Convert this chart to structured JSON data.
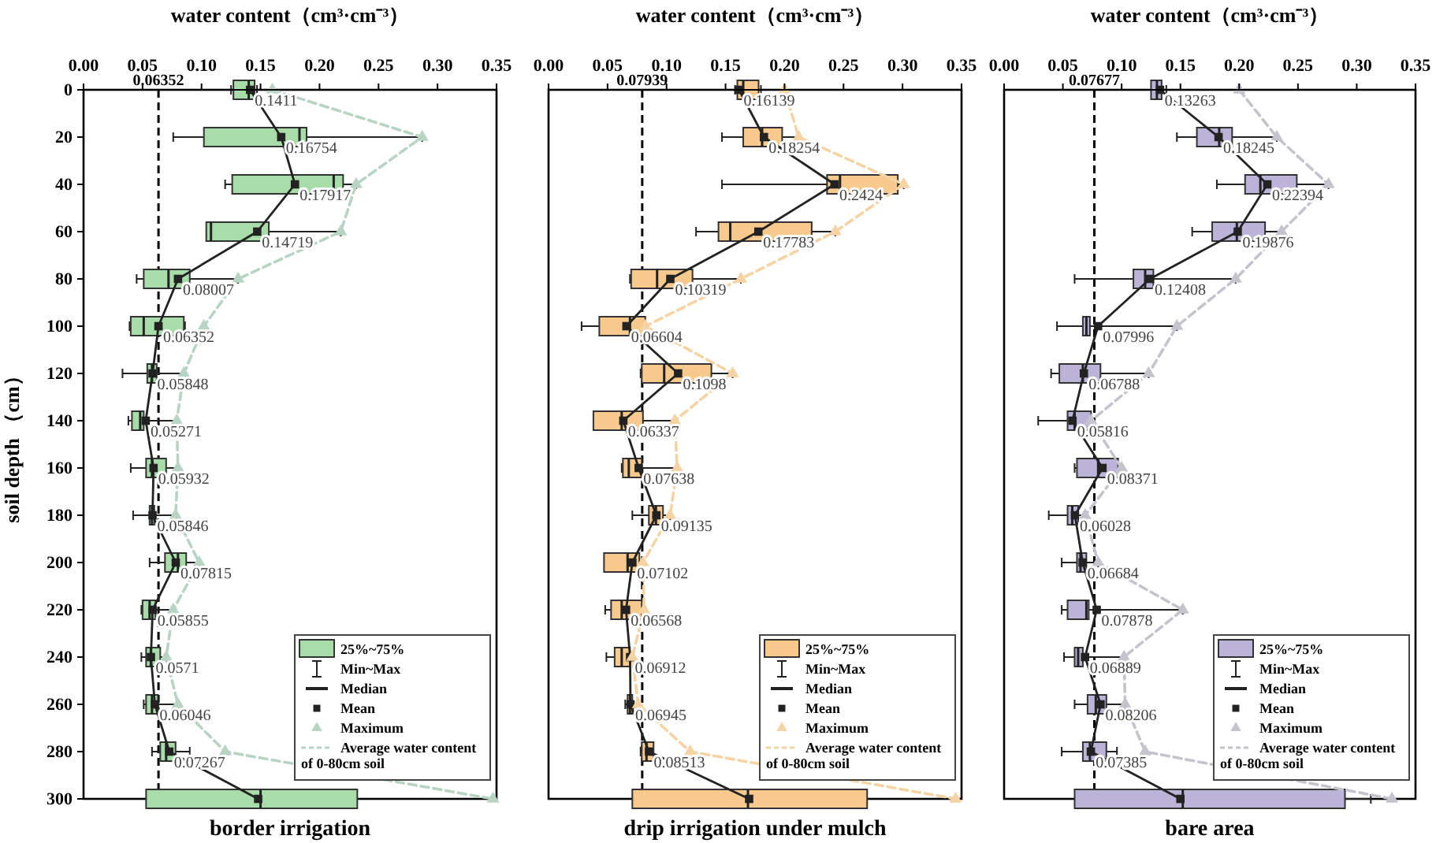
{
  "chart_data": [
    {
      "type": "box",
      "title": "border irrigation",
      "xlabel": "water content（cm³·cm⁻³）",
      "ylabel": "soil depth （cm）",
      "orientation": "horizontal",
      "legend": "bottom right",
      "categories": [
        "0",
        "20",
        "40",
        "60",
        "80",
        "100",
        "120",
        "140",
        "160",
        "180",
        "200",
        "220",
        "240",
        "260",
        "280",
        "300"
      ],
      "xlim": [
        0,
        0.35
      ],
      "xticks": [
        {
          "value": 0,
          "label": "0.00"
        },
        {
          "value": 0.05,
          "label": "0.05"
        },
        {
          "value": 0.1,
          "label": "0.10"
        },
        {
          "value": 0.15,
          "label": "0.15"
        },
        {
          "value": 0.2,
          "label": "0.20"
        },
        {
          "value": 0.25,
          "label": "0.25"
        },
        {
          "value": 0.3,
          "label": "0.30"
        },
        {
          "value": 0.35,
          "label": "0.35"
        }
      ],
      "ref_lines": [
        {
          "axis": "x",
          "value": 0.06352,
          "label": "0.06352",
          "color": "#000000",
          "line_style": "dashed"
        }
      ],
      "annotations": [
        "Min~Max",
        "Median",
        "Average water content of 0-80cm soil"
      ],
      "series": [
        {
          "type": "box",
          "name": "25%~75%",
          "color": "#a8dca8",
          "boxes": [
            {
              "low": 0.125,
              "q1": 0.127,
              "median": 0.14,
              "q3": 0.145,
              "high": 0.147
            },
            {
              "low": 0.076,
              "q1": 0.102,
              "median": 0.183,
              "q3": 0.189,
              "high": 0.287
            },
            {
              "low": 0.12,
              "q1": 0.126,
              "median": 0.212,
              "q3": 0.22,
              "high": 0.231
            },
            {
              "low": 0.104,
              "q1": 0.104,
              "median": 0.108,
              "q3": 0.157,
              "high": 0.218
            },
            {
              "low": 0.045,
              "q1": 0.051,
              "median": 0.072,
              "q3": 0.09,
              "high": 0.131
            },
            {
              "low": 0.039,
              "q1": 0.04,
              "median": 0.051,
              "q3": 0.085,
              "high": 0.086
            },
            {
              "low": 0.033,
              "q1": 0.054,
              "median": 0.058,
              "q3": 0.062,
              "high": 0.085
            },
            {
              "low": 0.038,
              "q1": 0.041,
              "median": 0.048,
              "q3": 0.051,
              "high": 0.079
            },
            {
              "low": 0.04,
              "q1": 0.053,
              "median": 0.058,
              "q3": 0.07,
              "high": 0.08
            },
            {
              "low": 0.042,
              "q1": 0.056,
              "median": 0.058,
              "q3": 0.06,
              "high": 0.078
            },
            {
              "low": 0.056,
              "q1": 0.069,
              "median": 0.08,
              "q3": 0.087,
              "high": 0.098
            },
            {
              "low": 0.049,
              "q1": 0.05,
              "median": 0.056,
              "q3": 0.061,
              "high": 0.076
            },
            {
              "low": 0.049,
              "q1": 0.053,
              "median": 0.057,
              "q3": 0.065,
              "high": 0.07
            },
            {
              "low": 0.051,
              "q1": 0.053,
              "median": 0.058,
              "q3": 0.063,
              "high": 0.08
            },
            {
              "low": 0.058,
              "q1": 0.065,
              "median": 0.07,
              "q3": 0.078,
              "high": 0.09
            },
            {
              "low": 0.053,
              "q1": 0.053,
              "median": 0.15,
              "q3": 0.232,
              "high": 0.232
            }
          ]
        },
        {
          "type": "line",
          "name": "Mean",
          "color": "#222222",
          "marker": "square",
          "values": [
            0.1411,
            0.16754,
            0.17917,
            0.14719,
            0.08007,
            0.06352,
            0.05848,
            0.05271,
            0.05932,
            0.05846,
            0.07815,
            0.05855,
            0.0571,
            0.06046,
            0.07267,
            0.148
          ],
          "value_labels": [
            "0.1411",
            "0.16754",
            "0.17917",
            "0.14719",
            "0.08007",
            "0.06352",
            "0.05848",
            "0.05271",
            "0.05932",
            "0.05846",
            "0.07815",
            "0.05855",
            "0.0571",
            "0.06046",
            "0.07267",
            null
          ]
        },
        {
          "type": "line",
          "name": "Maximum",
          "color": "#b8d4c4",
          "marker": "triangle",
          "line_style": "dashed",
          "values": [
            0.16,
            0.287,
            0.231,
            0.218,
            0.131,
            0.102,
            0.085,
            0.079,
            0.08,
            0.078,
            0.098,
            0.076,
            0.07,
            0.08,
            0.12,
            0.347
          ]
        }
      ]
    },
    {
      "type": "box",
      "title": "drip irrigation under mulch",
      "xlabel": "water content（cm³·cm⁻³）",
      "orientation": "horizontal",
      "legend": "bottom right",
      "tick_labels": "x",
      "categories": [
        "0",
        "20",
        "40",
        "60",
        "80",
        "100",
        "120",
        "140",
        "160",
        "180",
        "200",
        "220",
        "240",
        "260",
        "280",
        "300"
      ],
      "xlim": [
        0,
        0.35
      ],
      "xticks": [
        {
          "value": 0,
          "label": "0.00"
        },
        {
          "value": 0.05,
          "label": "0.05"
        },
        {
          "value": 0.1,
          "label": "0.10"
        },
        {
          "value": 0.15,
          "label": "0.15"
        },
        {
          "value": 0.2,
          "label": "0.20"
        },
        {
          "value": 0.25,
          "label": "0.25"
        },
        {
          "value": 0.3,
          "label": "0.30"
        },
        {
          "value": 0.35,
          "label": "0.35"
        }
      ],
      "ref_lines": [
        {
          "axis": "x",
          "value": 0.07939,
          "label": "0.07939",
          "color": "#000000",
          "line_style": "dashed"
        }
      ],
      "annotations": [
        "Min~Max",
        "Median",
        "Average water content of 0-80cm soil"
      ],
      "series": [
        {
          "type": "box",
          "name": "25%~75%",
          "color": "#f7c98c",
          "boxes": [
            {
              "low": 0.158,
              "q1": 0.16,
              "median": 0.165,
              "q3": 0.178,
              "high": 0.18
            },
            {
              "low": 0.147,
              "q1": 0.165,
              "median": 0.181,
              "q3": 0.198,
              "high": 0.212
            },
            {
              "low": 0.147,
              "q1": 0.236,
              "median": 0.247,
              "q3": 0.296,
              "high": 0.301
            },
            {
              "low": 0.125,
              "q1": 0.144,
              "median": 0.154,
              "q3": 0.223,
              "high": 0.243
            },
            {
              "low": 0.069,
              "q1": 0.07,
              "median": 0.092,
              "q3": 0.122,
              "high": 0.163
            },
            {
              "low": 0.028,
              "q1": 0.043,
              "median": 0.069,
              "q3": 0.082,
              "high": 0.082
            },
            {
              "low": 0.078,
              "q1": 0.079,
              "median": 0.098,
              "q3": 0.138,
              "high": 0.156
            },
            {
              "low": 0.038,
              "q1": 0.038,
              "median": 0.062,
              "q3": 0.08,
              "high": 0.107
            },
            {
              "low": 0.062,
              "q1": 0.063,
              "median": 0.068,
              "q3": 0.079,
              "high": 0.109
            },
            {
              "low": 0.071,
              "q1": 0.085,
              "median": 0.091,
              "q3": 0.097,
              "high": 0.103
            },
            {
              "low": 0.047,
              "q1": 0.047,
              "median": 0.067,
              "q3": 0.077,
              "high": 0.08
            },
            {
              "low": 0.048,
              "q1": 0.053,
              "median": 0.062,
              "q3": 0.079,
              "high": 0.081
            },
            {
              "low": 0.049,
              "q1": 0.056,
              "median": 0.062,
              "q3": 0.069,
              "high": 0.071
            },
            {
              "low": 0.065,
              "q1": 0.067,
              "median": 0.069,
              "q3": 0.071,
              "high": 0.076
            },
            {
              "low": 0.078,
              "q1": 0.079,
              "median": 0.083,
              "q3": 0.089,
              "high": 0.089
            },
            {
              "low": 0.071,
              "q1": 0.071,
              "median": 0.169,
              "q3": 0.27,
              "high": 0.27
            }
          ]
        },
        {
          "type": "line",
          "name": "Mean",
          "color": "#222222",
          "marker": "square",
          "values": [
            0.16139,
            0.18254,
            0.2424,
            0.17783,
            0.10319,
            0.06604,
            0.1098,
            0.06337,
            0.07638,
            0.09135,
            0.07102,
            0.06568,
            0.06912,
            0.06945,
            0.08513,
            0.17
          ],
          "value_labels": [
            "0.16139",
            "0.18254",
            "0.2424",
            "0.17783",
            "0.10319",
            "0.06604",
            "0.1098",
            "0.06337",
            "0.07638",
            "0.09135",
            "0.07102",
            "0.06568",
            "0.06912",
            "0.06945",
            "0.08513",
            null
          ]
        },
        {
          "type": "line",
          "name": "Maximum",
          "color": "#f5d3a4",
          "marker": "triangle",
          "line_style": "dashed",
          "values": [
            0.2,
            0.212,
            0.301,
            0.243,
            0.163,
            0.082,
            0.156,
            0.107,
            0.109,
            0.103,
            0.08,
            0.081,
            0.071,
            0.076,
            0.12,
            0.345
          ]
        }
      ]
    },
    {
      "type": "box",
      "title": "bare area",
      "xlabel": "water content（cm³·cm⁻³）",
      "orientation": "horizontal",
      "legend": "bottom right",
      "tick_labels": "x",
      "categories": [
        "0",
        "20",
        "40",
        "60",
        "80",
        "100",
        "120",
        "140",
        "160",
        "180",
        "200",
        "220",
        "240",
        "260",
        "280",
        "300"
      ],
      "xlim": [
        0,
        0.35
      ],
      "xticks": [
        {
          "value": 0,
          "label": "0.00"
        },
        {
          "value": 0.05,
          "label": "0.05"
        },
        {
          "value": 0.1,
          "label": "0.10"
        },
        {
          "value": 0.15,
          "label": "0.15"
        },
        {
          "value": 0.2,
          "label": "0.20"
        },
        {
          "value": 0.25,
          "label": "0.25"
        },
        {
          "value": 0.3,
          "label": "0.30"
        },
        {
          "value": 0.35,
          "label": "0.35"
        }
      ],
      "ref_lines": [
        {
          "axis": "x",
          "value": 0.07677,
          "label": "0.07677",
          "color": "#000000",
          "line_style": "dashed"
        }
      ],
      "annotations": [
        "Min~Max",
        "Median",
        "Average water content of 0-80cm soil"
      ],
      "series": [
        {
          "type": "box",
          "name": "25%~75%",
          "color": "#bbb3d8",
          "boxes": [
            {
              "low": 0.125,
              "q1": 0.125,
              "median": 0.13,
              "q3": 0.134,
              "high": 0.138
            },
            {
              "low": 0.147,
              "q1": 0.164,
              "median": 0.183,
              "q3": 0.194,
              "high": 0.232
            },
            {
              "low": 0.181,
              "q1": 0.205,
              "median": 0.218,
              "q3": 0.249,
              "high": 0.276
            },
            {
              "low": 0.16,
              "q1": 0.177,
              "median": 0.198,
              "q3": 0.222,
              "high": 0.236
            },
            {
              "low": 0.06,
              "q1": 0.11,
              "median": 0.12,
              "q3": 0.127,
              "high": 0.197
            },
            {
              "low": 0.045,
              "q1": 0.067,
              "median": 0.07,
              "q3": 0.073,
              "high": 0.147
            },
            {
              "low": 0.04,
              "q1": 0.047,
              "median": 0.067,
              "q3": 0.082,
              "high": 0.123
            },
            {
              "low": 0.029,
              "q1": 0.054,
              "median": 0.06,
              "q3": 0.074,
              "high": 0.074
            },
            {
              "low": 0.06,
              "q1": 0.062,
              "median": 0.08,
              "q3": 0.097,
              "high": 0.1
            },
            {
              "low": 0.038,
              "q1": 0.054,
              "median": 0.058,
              "q3": 0.063,
              "high": 0.069
            },
            {
              "low": 0.049,
              "q1": 0.062,
              "median": 0.065,
              "q3": 0.07,
              "high": 0.08
            },
            {
              "low": 0.049,
              "q1": 0.054,
              "median": 0.07,
              "q3": 0.072,
              "high": 0.152
            },
            {
              "low": 0.051,
              "q1": 0.06,
              "median": 0.063,
              "q3": 0.067,
              "high": 0.102
            },
            {
              "low": 0.06,
              "q1": 0.071,
              "median": 0.078,
              "q3": 0.087,
              "high": 0.103
            },
            {
              "low": 0.049,
              "q1": 0.067,
              "median": 0.073,
              "q3": 0.087,
              "high": 0.096
            },
            {
              "low": 0.06,
              "q1": 0.06,
              "median": 0.152,
              "q3": 0.29,
              "high": 0.312
            }
          ]
        },
        {
          "type": "line",
          "name": "Mean",
          "color": "#222222",
          "marker": "square",
          "values": [
            0.13263,
            0.18245,
            0.22394,
            0.19876,
            0.12408,
            0.07996,
            0.06788,
            0.05816,
            0.08371,
            0.06028,
            0.06684,
            0.07878,
            0.06889,
            0.08206,
            0.07385,
            0.15
          ],
          "value_labels": [
            "0.13263",
            "0.18245",
            "0.22394",
            "0.19876",
            "0.12408",
            "0.07996",
            "0.06788",
            "0.05816",
            "0.08371",
            "0.06028",
            "0.06684",
            "0.07878",
            "0.06889",
            "0.08206",
            "0.07385",
            null
          ]
        },
        {
          "type": "line",
          "name": "Maximum",
          "color": "#c4c4cc",
          "marker": "triangle",
          "line_style": "dashed",
          "values": [
            0.2,
            0.232,
            0.276,
            0.236,
            0.197,
            0.147,
            0.123,
            0.074,
            0.1,
            0.069,
            0.08,
            0.152,
            0.102,
            0.103,
            0.12,
            0.33
          ]
        }
      ]
    }
  ]
}
